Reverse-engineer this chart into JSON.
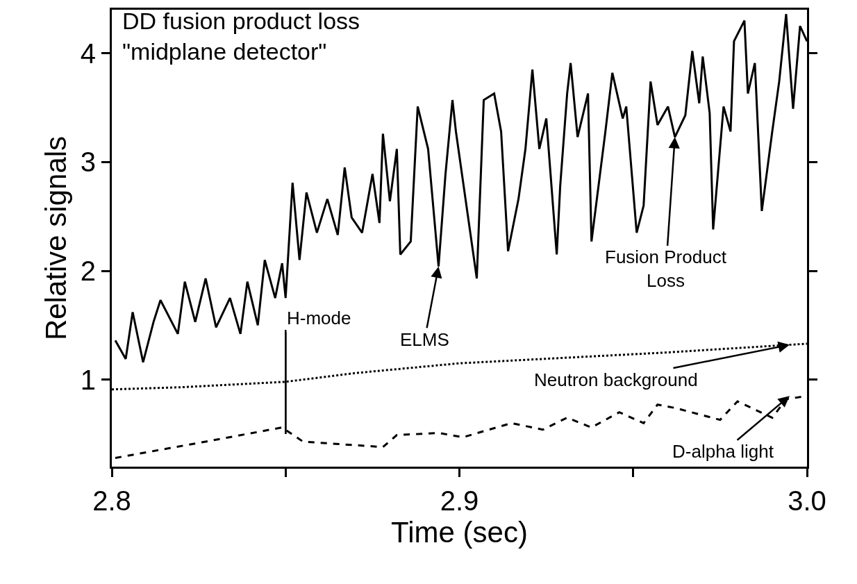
{
  "chart_data": {
    "type": "line",
    "title": "DD fusion product loss\n\"midplane detector\"",
    "xlabel": "Time (sec)",
    "ylabel": "Relative signals",
    "xlim": [
      2.8,
      3.0
    ],
    "xticks": [
      2.8,
      {
        "value": 2.85,
        "label": null
      },
      2.9,
      {
        "value": 2.95,
        "label": null
      },
      {
        "value": 3.0,
        "label": "3.0"
      }
    ],
    "ylim": [
      0.2,
      4.4
    ],
    "yticks": [
      1,
      2,
      3,
      4
    ],
    "marker": "none",
    "series": [
      {
        "color": "#000000",
        "line_style": "solid",
        "x": [
          2.801,
          2.804,
          2.806,
          2.809,
          2.812,
          2.814,
          2.819,
          2.821,
          2.824,
          2.827,
          2.83,
          2.834,
          2.837,
          2.839,
          2.842,
          2.844,
          2.847,
          2.849,
          2.85,
          2.852,
          2.854,
          2.856,
          2.859,
          2.862,
          2.865,
          2.867,
          2.869,
          2.872,
          2.875,
          2.877,
          2.878,
          2.88,
          2.882,
          2.883,
          2.886,
          2.888,
          2.891,
          2.894,
          2.896,
          2.898,
          2.899,
          2.905,
          2.907,
          2.91,
          2.912,
          2.914,
          2.917,
          2.919,
          2.921,
          2.923,
          2.925,
          2.928,
          2.929,
          2.931,
          2.932,
          2.934,
          2.937,
          2.938,
          2.942,
          2.944,
          2.947,
          2.948,
          2.951,
          2.953,
          2.955,
          2.957,
          2.96,
          2.962,
          2.965,
          2.967,
          2.969,
          2.97,
          2.972,
          2.973,
          2.976,
          2.978,
          2.979,
          2.982,
          2.983,
          2.985,
          2.987,
          2.99,
          2.992,
          2.994,
          2.996,
          2.998,
          3.0
        ],
        "values": [
          1.36,
          1.19,
          1.62,
          1.16,
          1.53,
          1.73,
          1.42,
          1.9,
          1.53,
          1.93,
          1.48,
          1.75,
          1.42,
          1.9,
          1.5,
          2.1,
          1.75,
          2.07,
          1.75,
          2.81,
          2.1,
          2.72,
          2.35,
          2.66,
          2.33,
          2.95,
          2.49,
          2.35,
          2.89,
          2.44,
          3.26,
          2.64,
          3.12,
          2.15,
          2.27,
          3.51,
          3.12,
          2.04,
          2.89,
          3.57,
          3.28,
          1.93,
          3.57,
          3.63,
          3.28,
          2.18,
          2.66,
          3.12,
          3.85,
          3.12,
          3.4,
          2.15,
          2.78,
          3.63,
          3.91,
          3.23,
          3.63,
          2.27,
          3.28,
          3.82,
          3.4,
          3.51,
          2.35,
          2.6,
          3.74,
          3.34,
          3.51,
          3.23,
          3.43,
          4.02,
          3.54,
          3.97,
          3.45,
          2.38,
          3.51,
          3.28,
          4.11,
          4.3,
          3.63,
          3.91,
          2.55,
          3.28,
          3.74,
          4.36,
          3.49,
          4.25,
          4.11
        ]
      },
      {
        "color": "#000000",
        "line_style": "dotted",
        "x": [
          2.8,
          2.82,
          2.85,
          2.87,
          2.9,
          2.93,
          2.96,
          3.0
        ],
        "values": [
          0.91,
          0.93,
          0.98,
          1.06,
          1.15,
          1.2,
          1.25,
          1.33
        ]
      },
      {
        "color": "#000000",
        "line_style": "dashed",
        "x": [
          2.801,
          2.827,
          2.849,
          2.855,
          2.878,
          2.882,
          2.894,
          2.901,
          2.915,
          2.924,
          2.931,
          2.938,
          2.946,
          2.953,
          2.957,
          2.962,
          2.975,
          2.98,
          2.99,
          2.994,
          3.0
        ],
        "values": [
          0.28,
          0.43,
          0.56,
          0.43,
          0.38,
          0.49,
          0.51,
          0.47,
          0.6,
          0.54,
          0.65,
          0.56,
          0.7,
          0.6,
          0.77,
          0.74,
          0.63,
          0.8,
          0.65,
          0.82,
          0.85
        ]
      }
    ],
    "annotations": [
      {
        "text": "H-mode",
        "x": 2.85,
        "y": 0.5
      },
      {
        "text": "ELMS",
        "x": 2.894,
        "y": 2.04
      },
      {
        "text": "Fusion Product\nLoss",
        "x": 2.962,
        "y": 3.23
      },
      {
        "text": "Neutron background",
        "x": 2.995,
        "y": 1.32
      },
      {
        "text": "D-alpha light",
        "x": 2.995,
        "y": 0.85
      }
    ]
  }
}
